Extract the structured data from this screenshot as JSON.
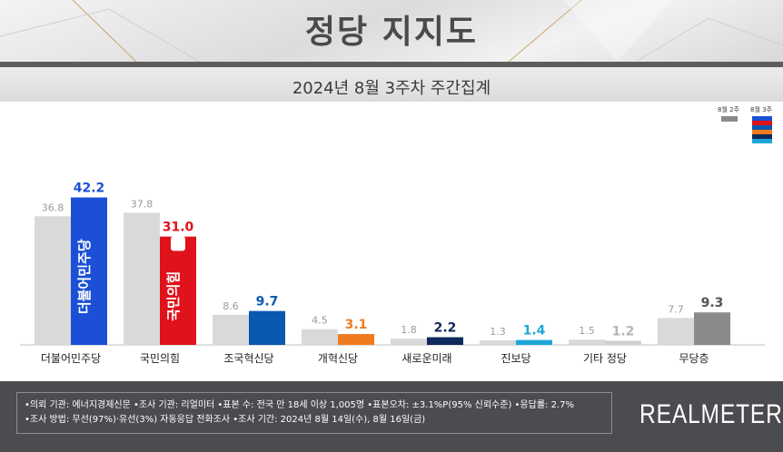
{
  "header": {
    "title": "정당 지지도",
    "subtitle": "2024년 8월 3주차 주간집계"
  },
  "legend": {
    "prev_label": "8월 2주",
    "curr_label": "8월 3주"
  },
  "chart_data": {
    "type": "bar",
    "categories": [
      "더불어민주당",
      "국민의힘",
      "조국혁신당",
      "개혁신당",
      "새로운미래",
      "진보당",
      "기타 정당",
      "무당층"
    ],
    "series": [
      {
        "name": "8월 2주",
        "values": [
          36.8,
          37.8,
          8.6,
          4.5,
          1.8,
          1.3,
          1.5,
          7.7
        ]
      },
      {
        "name": "8월 3주",
        "values": [
          42.2,
          31.0,
          9.7,
          3.1,
          2.2,
          1.4,
          1.2,
          9.3
        ]
      }
    ],
    "value_labels_prev": [
      "36.8",
      "37.8",
      "8.6",
      "4.5",
      "1.8",
      "1.3",
      "1.5",
      "7.7"
    ],
    "value_labels_curr": [
      "42.2",
      "31.0",
      "9.7",
      "3.1",
      "2.2",
      "1.4",
      "1.2",
      "9.3"
    ],
    "ylim": [
      0,
      50
    ],
    "grid": false,
    "legend_position": "top-right",
    "colors": {
      "prev": "#d9d9d9",
      "curr": [
        "#1a4fd6",
        "#e0121b",
        "#0a58b0",
        "#f07a1e",
        "#0f2a5a",
        "#1fa6d8",
        "#cfcfcf",
        "#8a8a8a"
      ],
      "curr_label": [
        "#1a4fd6",
        "#e0121b",
        "#0a58b0",
        "#f07a1e",
        "#0f2a5a",
        "#1fa6d8",
        "#b5b5b5",
        "#555555"
      ],
      "legend_stripes": [
        "#1a4fd6",
        "#e0121b",
        "#0a58b0",
        "#f07a1e",
        "#0f2a5a",
        "#1fa6d8"
      ]
    },
    "bar_logos": [
      "더불어민주당",
      "국민의힘"
    ]
  },
  "footer": {
    "line1": "•의뢰 기관: 에너지경제신문  •조사 기관: 리얼미터 •표본 수: 전국 만 18세 이상 1,005명  •표본오차: ±3.1%P(95% 신뢰수준) •응답률: 2.7%",
    "line2": "•조사 방법: 무선(97%)·유선(3%) 자동응답 전화조사 •조사 기간: 2024년 8월 14일(수), 8월 16일(금)",
    "brand": "REALMETER"
  }
}
